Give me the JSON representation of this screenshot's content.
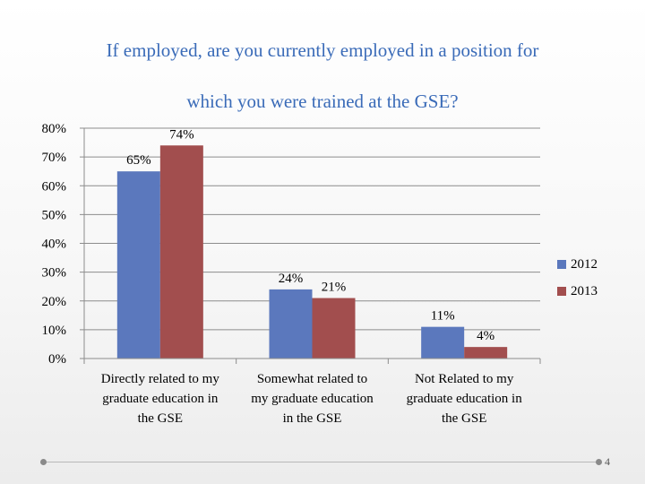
{
  "slide": {
    "title_line1": "If employed, are you currently employed in a position for",
    "title_line2": "which you were trained at the GSE?",
    "page_number": "4"
  },
  "chart_data": {
    "type": "bar",
    "title": "If employed, are you currently employed in a position for which you were trained at the GSE?",
    "categories": [
      "Directly related to my graduate education in the GSE",
      "Somewhat related to my graduate education in the GSE",
      "Not Related to my graduate education in the GSE"
    ],
    "category_lines": [
      [
        "Directly related to my",
        "graduate education in",
        "the GSE"
      ],
      [
        "Somewhat related to",
        "my graduate education",
        "in the GSE"
      ],
      [
        "Not Related to my",
        "graduate education in",
        "the GSE"
      ]
    ],
    "series": [
      {
        "name": "2012",
        "values": [
          65,
          24,
          11
        ],
        "labels": [
          "65%",
          "24%",
          "11%"
        ],
        "color": "#5b78bd"
      },
      {
        "name": "2013",
        "values": [
          74,
          21,
          4
        ],
        "labels": [
          "74%",
          "21%",
          "4%"
        ],
        "color": "#a24e4e"
      }
    ],
    "ylim": [
      0,
      80
    ],
    "yticks": [
      "0%",
      "10%",
      "20%",
      "30%",
      "40%",
      "50%",
      "60%",
      "70%",
      "80%"
    ],
    "xlabel": "",
    "ylabel": "",
    "grid": true,
    "legend": "right"
  }
}
